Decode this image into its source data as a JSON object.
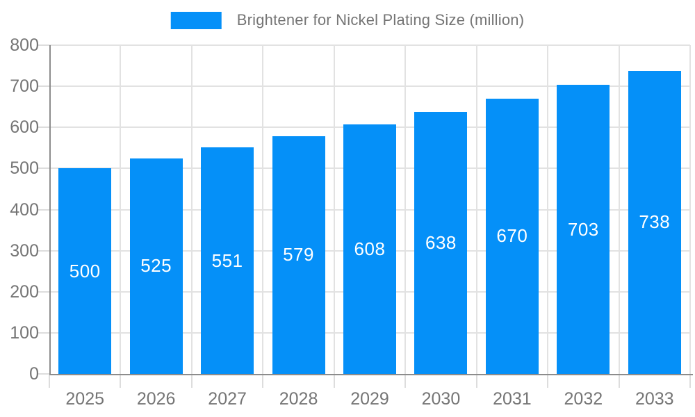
{
  "legend": {
    "label": "Brightener for Nickel Plating Size (million)"
  },
  "colors": {
    "bar": "#0590F8",
    "grid": "#E2E2E2",
    "tick": "#DDDDDD",
    "axis": "#8C8C8C",
    "axis_label": "#757575",
    "bar_label": "#FFFFFF",
    "background": "#FFFFFF"
  },
  "chart_data": {
    "type": "bar",
    "title": "Brightener for Nickel Plating Size (million)",
    "categories": [
      "2025",
      "2026",
      "2027",
      "2028",
      "2029",
      "2030",
      "2031",
      "2032",
      "2033"
    ],
    "values": [
      500,
      525,
      551,
      579,
      608,
      638,
      670,
      703,
      738
    ],
    "series_name": "Brightener for Nickel Plating Size (million)",
    "xlabel": "",
    "ylabel": "",
    "ylim": [
      0,
      800
    ],
    "yticks": [
      0,
      100,
      200,
      300,
      400,
      500,
      600,
      700,
      800
    ],
    "grid": "on",
    "legend_position": "top-center",
    "bar_value_labels": "inside-center-white"
  }
}
